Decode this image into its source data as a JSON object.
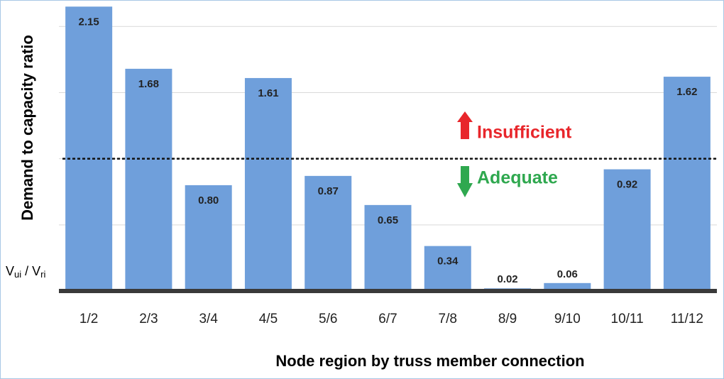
{
  "chart_data": {
    "type": "bar",
    "y_axis_label": "Demand to capacity ratio",
    "y_unit": [
      "V",
      "ui",
      " / V",
      "ri"
    ],
    "x_axis_label": "Node region by truss member connection",
    "categories": [
      "1/2",
      "2/3",
      "3/4",
      "4/5",
      "5/6",
      "6/7",
      "7/8",
      "8/9",
      "9/10",
      "10/11",
      "11/12"
    ],
    "values": [
      2.15,
      1.68,
      0.8,
      1.61,
      0.87,
      0.65,
      0.34,
      0.02,
      0.06,
      0.92,
      1.62
    ],
    "value_labels": [
      "2.15",
      "1.68",
      "0.80",
      "1.61",
      "0.87",
      "0.65",
      "0.34",
      "0.02",
      "0.06",
      "0.92",
      "1.62"
    ],
    "color": "#6f9fdb",
    "ylim": [
      0,
      2.2
    ],
    "yticks": [
      0.5,
      1,
      1.5,
      2
    ],
    "grid": true,
    "threshold": 1,
    "annotations": [
      {
        "text": "Insufficient",
        "color": "#e8262b"
      },
      {
        "text": "Adequate",
        "color": "#2fa84f"
      }
    ]
  }
}
